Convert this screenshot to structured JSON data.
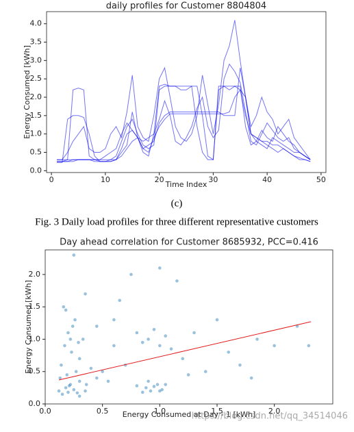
{
  "chart_data": [
    {
      "type": "line",
      "title": "daily profiles for Customer 8804804",
      "x_label": "Time Index",
      "y_label": "Energy Consumed [kWh]",
      "x": [
        1,
        2,
        3,
        4,
        5,
        6,
        7,
        8,
        9,
        10,
        11,
        12,
        13,
        14,
        15,
        16,
        17,
        18,
        19,
        20,
        21,
        22,
        23,
        24,
        25,
        26,
        27,
        28,
        29,
        30,
        31,
        32,
        33,
        34,
        35,
        36,
        37,
        38,
        39,
        40,
        41,
        42,
        43,
        44,
        45,
        46,
        47,
        48
      ],
      "xlim": [
        -0.9,
        50.9
      ],
      "xticks": [
        0,
        10,
        20,
        30,
        40,
        50
      ],
      "ylim": [
        -0.05,
        4.33
      ],
      "yticks": [
        {
          "value": 0,
          "label": "0.0"
        },
        0.5,
        {
          "value": 1,
          "label": "1.0"
        },
        1.5,
        {
          "value": 2,
          "label": "2.0"
        },
        2.5,
        {
          "value": 3,
          "label": "3.0"
        },
        3.5,
        {
          "value": 4,
          "label": "4.0"
        }
      ],
      "series": [
        {
          "color": "#0000ee",
          "values": [
            0.25,
            0.25,
            0.3,
            2.2,
            2.25,
            2.2,
            0.4,
            0.3,
            0.25,
            0.25,
            0.3,
            0.3,
            0.4,
            0.6,
            0.8,
            0.9,
            0.5,
            0.4,
            1.0,
            2.3,
            2.35,
            2.3,
            2.3,
            2.3,
            2.3,
            2.3,
            1.2,
            0.5,
            0.3,
            0.3,
            2.3,
            2.3,
            2.3,
            2.3,
            2.3,
            1.2,
            0.7,
            0.8,
            0.7,
            0.6,
            0.9,
            0.8,
            0.7,
            0.6,
            0.5,
            0.5,
            0.4,
            0.3
          ]
        },
        {
          "color": "#0000ee",
          "values": [
            0.22,
            0.22,
            1.4,
            1.5,
            1.5,
            1.45,
            1.0,
            0.4,
            0.25,
            0.25,
            0.25,
            0.3,
            0.6,
            1.0,
            1.1,
            0.9,
            0.6,
            0.5,
            0.9,
            1.2,
            1.4,
            1.55,
            1.55,
            1.55,
            1.55,
            1.55,
            1.55,
            1.55,
            1.55,
            1.55,
            1.55,
            1.55,
            1.6,
            2.0,
            2.2,
            1.5,
            1.0,
            0.9,
            0.8,
            0.8,
            0.7,
            0.7,
            0.6,
            0.5,
            0.4,
            0.35,
            0.3,
            0.25
          ]
        },
        {
          "color": "#0000ee",
          "values": [
            0.3,
            0.3,
            0.5,
            0.8,
            1.0,
            1.2,
            0.6,
            0.5,
            0.5,
            0.6,
            1.0,
            1.2,
            0.9,
            1.6,
            2.6,
            1.2,
            0.9,
            0.8,
            1.5,
            2.5,
            2.8,
            2.0,
            1.2,
            0.9,
            0.8,
            1.0,
            1.5,
            2.6,
            1.8,
            1.0,
            1.8,
            3.0,
            3.4,
            4.1,
            3.0,
            2.0,
            1.2,
            1.5,
            2.0,
            1.6,
            1.4,
            1.0,
            1.2,
            1.4,
            0.9,
            0.7,
            0.5,
            0.3
          ]
        },
        {
          "color": "#0000ee",
          "values": [
            0.25,
            0.25,
            0.25,
            0.3,
            0.3,
            0.3,
            0.3,
            0.3,
            0.3,
            0.4,
            0.5,
            0.6,
            1.0,
            1.3,
            1.1,
            0.9,
            0.8,
            0.9,
            1.0,
            1.4,
            1.9,
            1.5,
            0.8,
            0.7,
            0.9,
            1.2,
            1.7,
            2.0,
            1.2,
            0.9,
            1.1,
            2.5,
            2.9,
            2.7,
            2.4,
            1.6,
            0.8,
            0.7,
            1.0,
            1.3,
            1.1,
            0.9,
            0.8,
            0.9,
            0.6,
            0.5,
            0.4,
            0.3
          ]
        },
        {
          "color": "#0000ee",
          "values": [
            0.3,
            0.3,
            0.3,
            0.3,
            0.3,
            0.3,
            0.3,
            0.3,
            0.3,
            0.3,
            0.3,
            0.4,
            0.8,
            1.2,
            1.4,
            1.0,
            0.7,
            0.6,
            0.7,
            2.2,
            2.3,
            2.3,
            2.3,
            2.2,
            2.2,
            2.3,
            2.3,
            1.5,
            0.4,
            0.3,
            2.2,
            2.3,
            2.2,
            2.3,
            2.2,
            2.0,
            1.0,
            0.8,
            1.1,
            0.9,
            0.8,
            1.2,
            1.0,
            0.8,
            0.7,
            0.5,
            0.4,
            0.3
          ]
        },
        {
          "color": "#0000ee",
          "values": [
            0.25,
            0.25,
            0.25,
            0.25,
            0.3,
            0.3,
            0.3,
            0.25,
            0.25,
            0.25,
            0.25,
            0.3,
            0.5,
            0.7,
            1.6,
            0.9,
            0.6,
            0.7,
            0.8,
            1.3,
            1.5,
            1.6,
            1.6,
            1.6,
            1.6,
            1.6,
            1.6,
            1.6,
            1.6,
            1.6,
            1.6,
            1.5,
            1.5,
            1.5,
            2.8,
            2.0,
            1.0,
            0.9,
            0.8,
            0.7,
            0.6,
            0.5,
            0.6,
            0.5,
            0.4,
            0.3,
            0.3,
            0.25
          ]
        }
      ]
    },
    {
      "type": "scatter",
      "title": "Day ahead correlation for Customer 8685932, PCC=0.416",
      "x_label": "Energy Consumed at Day - 1 [kWh]",
      "y_label": "Energy Consumed [kWh]",
      "xlim": [
        0,
        2.51
      ],
      "xticks": [
        {
          "value": 0,
          "label": "0.0"
        },
        0.5,
        {
          "value": 1,
          "label": "1.0"
        },
        1.5,
        {
          "value": 2,
          "label": "2.0"
        }
      ],
      "ylim": [
        0,
        2.38
      ],
      "yticks": [
        {
          "value": 0,
          "label": "0.0"
        },
        0.5,
        {
          "value": 1,
          "label": "1.0"
        },
        1.5,
        {
          "value": 2,
          "label": "2.0"
        }
      ],
      "series": [
        {
          "color": "#1f77b4",
          "x": [
            0.12,
            0.15,
            0.18,
            0.2,
            0.22,
            0.25,
            0.28,
            0.3,
            0.35,
            0.14,
            0.17,
            0.2,
            0.23,
            0.26,
            0.3,
            0.33,
            0.16,
            0.19,
            0.24,
            0.27,
            0.21,
            0.13,
            0.29,
            0.36,
            0.4,
            0.45,
            0.55,
            0.6,
            0.7,
            0.8,
            0.85,
            0.9,
            0.95,
            1.0,
            1.05,
            1.1,
            0.88,
            0.92,
            0.98,
            1.02,
            0.8,
            0.85,
            0.9,
            0.95,
            1.0,
            1.05,
            1.2,
            1.3,
            1.4,
            1.5,
            1.6,
            1.7,
            1.85,
            2.0,
            2.2,
            0.25,
            0.5,
            0.65,
            0.75,
            1.15,
            1.25,
            0.18,
            0.22,
            0.35,
            1.8,
            0.3,
            0.45,
            1.0,
            0.6,
            2.3
          ],
          "values": [
            0.2,
            0.15,
            0.25,
            0.18,
            0.3,
            0.22,
            0.17,
            0.35,
            0.2,
            0.6,
            0.9,
            1.1,
            0.8,
            1.3,
            0.7,
            1.0,
            1.5,
            0.45,
            1.2,
            0.5,
            0.28,
            0.4,
            0.95,
            0.3,
            0.55,
            0.4,
            0.35,
            0.9,
            0.6,
            1.1,
            0.95,
            1.0,
            1.15,
            0.9,
            1.05,
            0.85,
            0.25,
            0.2,
            0.3,
            0.22,
            0.28,
            0.18,
            0.35,
            0.27,
            0.2,
            0.3,
            0.7,
            1.1,
            0.5,
            1.3,
            0.8,
            0.6,
            1.0,
            0.9,
            1.2,
            2.3,
            0.5,
            1.6,
            2.0,
            1.9,
            0.45,
            1.45,
            1.0,
            1.7,
            0.4,
            0.12,
            1.2,
            2.1,
            1.3,
            0.9
          ]
        },
        {
          "type": "line",
          "color": "#e41a1c",
          "x": [
            0.12,
            2.32
          ],
          "values": [
            0.37,
            1.27
          ]
        }
      ]
    }
  ],
  "subcaption": "(c)",
  "figure_caption": "Fig. 3 Daily load profiles for three different representative customers",
  "watermark": "https://blog.csdn.net/qq_34514046"
}
